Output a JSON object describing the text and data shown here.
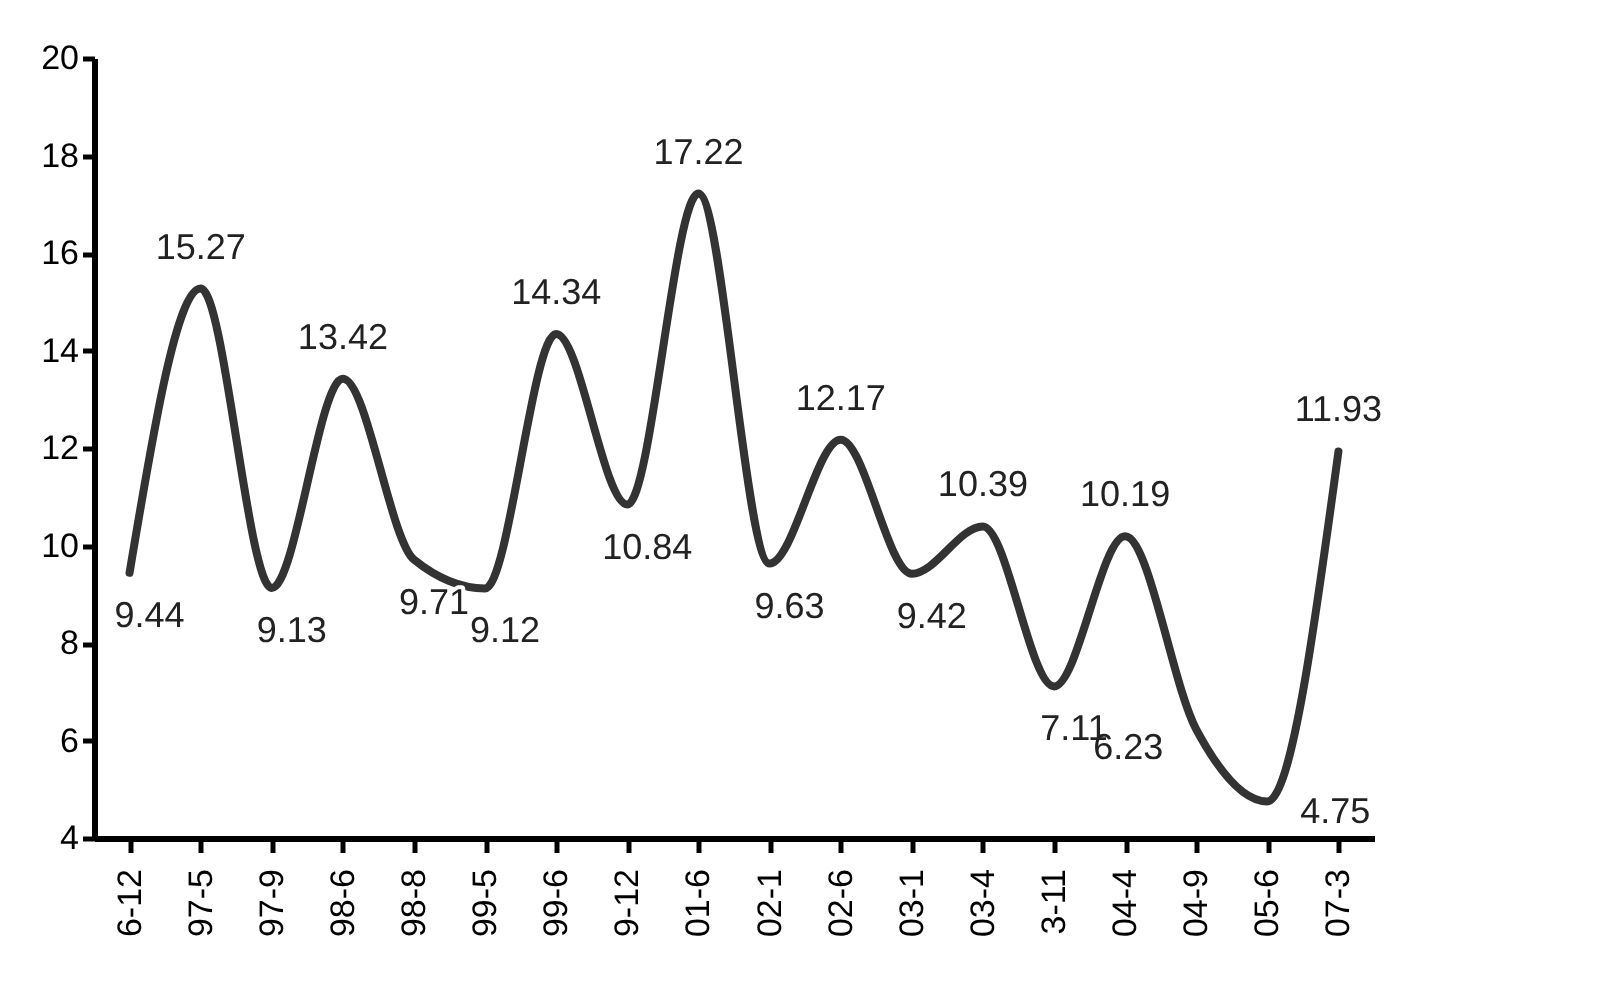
{
  "chart_data": {
    "type": "line",
    "categories": [
      "6-12",
      "97-5",
      "97-9",
      "98-6",
      "98-8",
      "99-5",
      "99-6",
      "9-12",
      "01-6",
      "02-1",
      "02-6",
      "03-1",
      "03-4",
      "3-11",
      "04-4",
      "04-9",
      "05-6",
      "07-3"
    ],
    "series": [
      {
        "color": "#333333",
        "values": [
          9.44,
          15.27,
          9.13,
          13.42,
          9.71,
          9.12,
          14.34,
          10.84,
          17.22,
          9.63,
          12.17,
          9.42,
          10.39,
          7.11,
          10.19,
          6.23,
          4.75,
          11.93
        ]
      }
    ],
    "ylim": [
      4,
      20
    ],
    "yticks": [
      4,
      6,
      8,
      10,
      12,
      14,
      16,
      18,
      20
    ],
    "grid": false,
    "legend": false,
    "marker": "none",
    "line_style": "solid",
    "data_labels": true
  }
}
